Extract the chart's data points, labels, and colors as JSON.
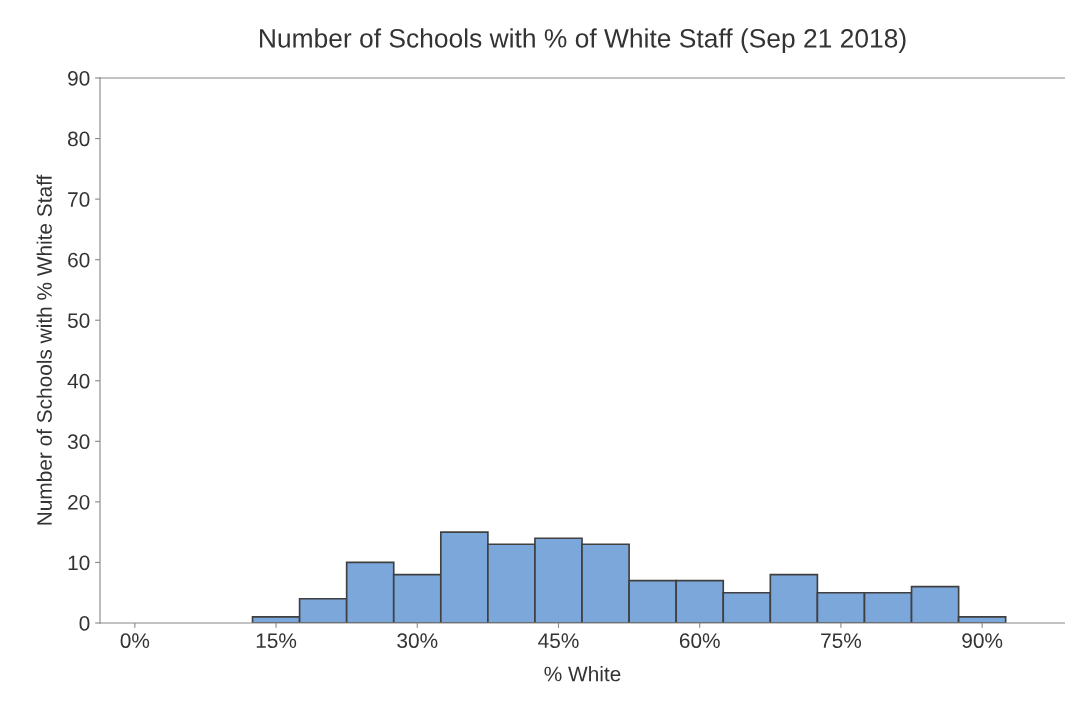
{
  "chart_data": {
    "type": "histogram",
    "title": "Number of Schools with % of White Staff (Sep 21 2018)",
    "xlabel": "% White",
    "ylabel": "Number of Schools with % White Staff",
    "bins": [
      12.5,
      17.5,
      22.5,
      27.5,
      32.5,
      37.5,
      42.5,
      47.5,
      52.5,
      57.5,
      62.5,
      67.5,
      72.5,
      77.5,
      82.5,
      87.5,
      92.5
    ],
    "values": [
      1,
      4,
      10,
      8,
      15,
      13,
      14,
      13,
      7,
      7,
      5,
      8,
      5,
      5,
      6,
      1
    ],
    "color": "#7ba7db",
    "xlim": [
      -3.7,
      98.8
    ],
    "xticks": [
      {
        "value": 0,
        "label": "0%"
      },
      {
        "value": 15,
        "label": "15%"
      },
      {
        "value": 30,
        "label": "30%"
      },
      {
        "value": 45,
        "label": "45%"
      },
      {
        "value": 60,
        "label": "60%"
      },
      {
        "value": 75,
        "label": "75%"
      },
      {
        "value": 90,
        "label": "90%"
      }
    ],
    "ylim": [
      0,
      90
    ],
    "yticks": [
      0,
      10,
      20,
      30,
      40,
      50,
      60,
      70,
      80,
      90
    ],
    "grid": false,
    "legend": false
  }
}
